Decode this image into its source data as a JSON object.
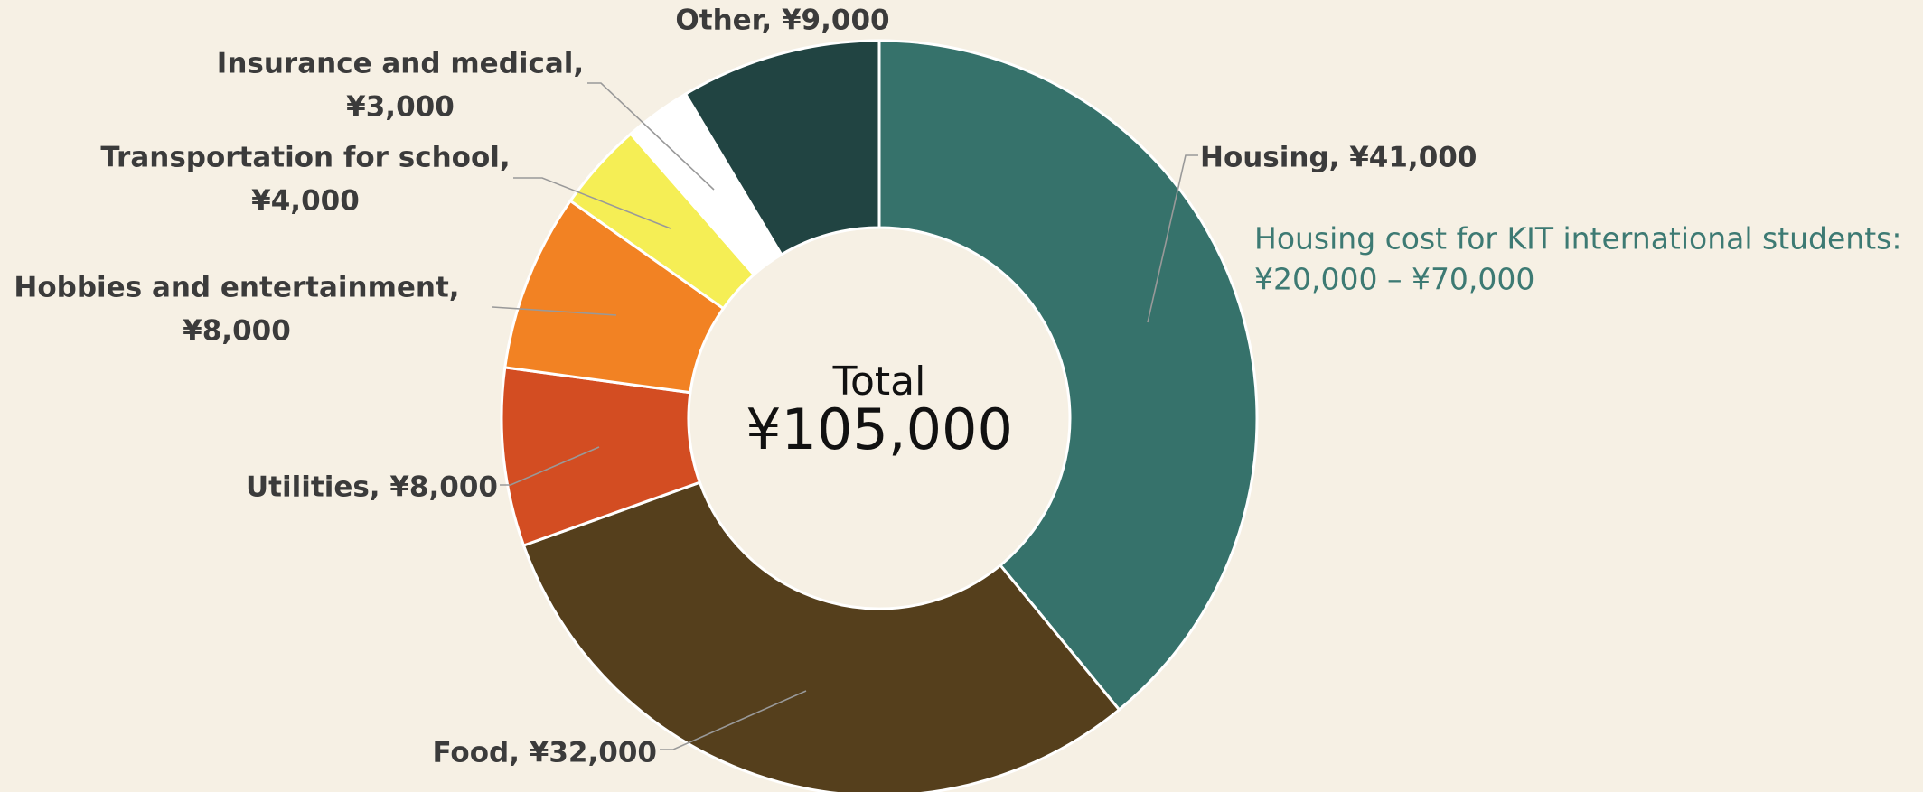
{
  "chart_data": {
    "type": "pie",
    "donut": true,
    "values": [
      41000,
      32000,
      8000,
      8000,
      4000,
      3000,
      9000
    ],
    "value_labels": [
      [
        "Housing, ¥41,000"
      ],
      [
        "Food, ¥32,000"
      ],
      [
        "Utilities, ¥8,000"
      ],
      [
        "Hobbies and entertainment,",
        "¥8,000"
      ],
      [
        "Transportation for school,",
        "¥4,000"
      ],
      [
        "Insurance and medical,",
        "¥3,000"
      ],
      [
        "Other, ¥9,000"
      ]
    ],
    "colors": [
      "#36726b",
      "#553f1c",
      "#d34d22",
      "#f28223",
      "#f5ee55",
      "#ffffff",
      "#214442"
    ],
    "center_title": "Total",
    "center_value": "¥105,000",
    "annotation": [
      "Housing cost for KIT international students:",
      "¥20,000 – ¥70,000"
    ]
  }
}
